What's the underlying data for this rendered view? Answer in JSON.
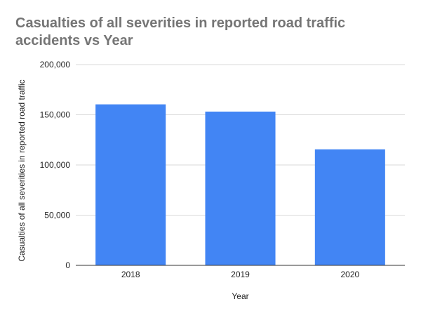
{
  "chart_data": {
    "type": "bar",
    "title": "Casualties of all severities in reported road traffic accidents vs Year",
    "xlabel": "Year",
    "ylabel": "Casualties of all severities in reported road traffic",
    "categories": [
      "2018",
      "2019",
      "2020"
    ],
    "series": [
      {
        "values": [
          160378,
          153158,
          115584
        ],
        "color": "#4285f4"
      }
    ],
    "ylim": [
      0,
      200000
    ],
    "yticks": [
      0,
      50000,
      100000,
      150000,
      200000
    ],
    "ytick_labels": [
      "0",
      "50,000",
      "100,000",
      "150,000",
      "200,000"
    ],
    "grid": true,
    "legend": "none",
    "gridline_color": "#d9d9d9",
    "axis_color": "#333333"
  }
}
